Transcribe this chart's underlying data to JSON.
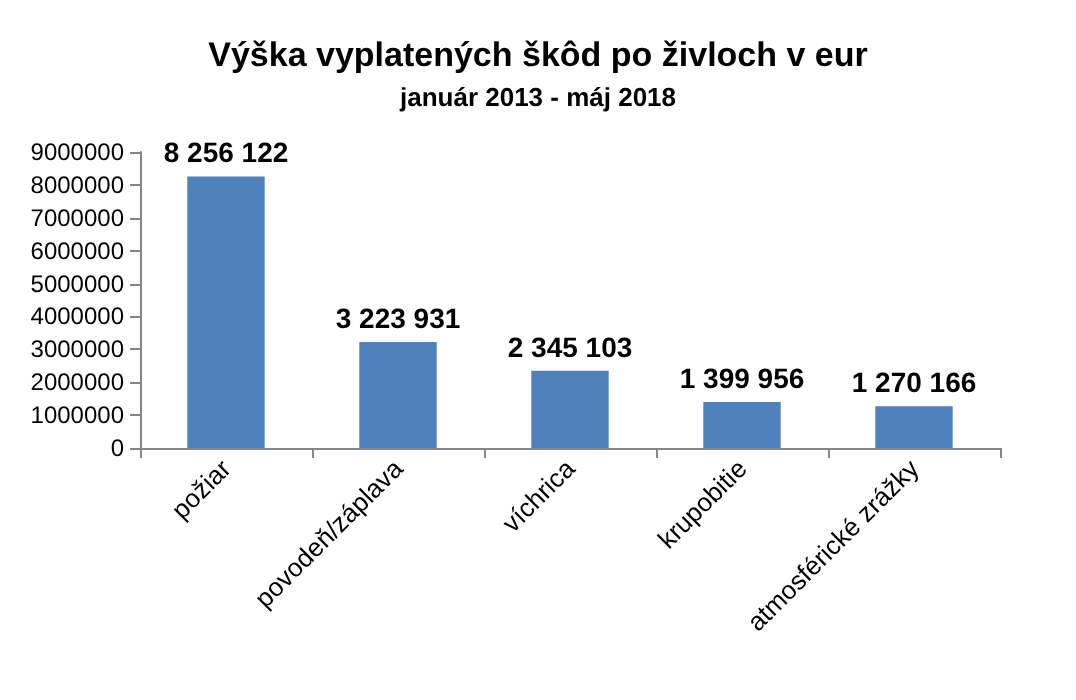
{
  "chart_data": {
    "type": "bar",
    "title": "Výška vyplatených škôd po živloch v eur",
    "subtitle": "január 2013 - máj 2018",
    "categories": [
      "požiar",
      "povodeň/záplava",
      "víchrica",
      "krupobitie",
      "atmosférické zrážky"
    ],
    "values": [
      8256122,
      3223931,
      2345103,
      1399956,
      1270166
    ],
    "color": "#4f81bd",
    "value_labels": [
      "8 256 122",
      "3 223 931",
      "2 345 103",
      "1 399 956",
      "1 270 166"
    ],
    "ylim": [
      0,
      9000000
    ],
    "yticks": [
      0,
      1000000,
      2000000,
      3000000,
      4000000,
      5000000,
      6000000,
      7000000,
      8000000,
      9000000
    ]
  }
}
